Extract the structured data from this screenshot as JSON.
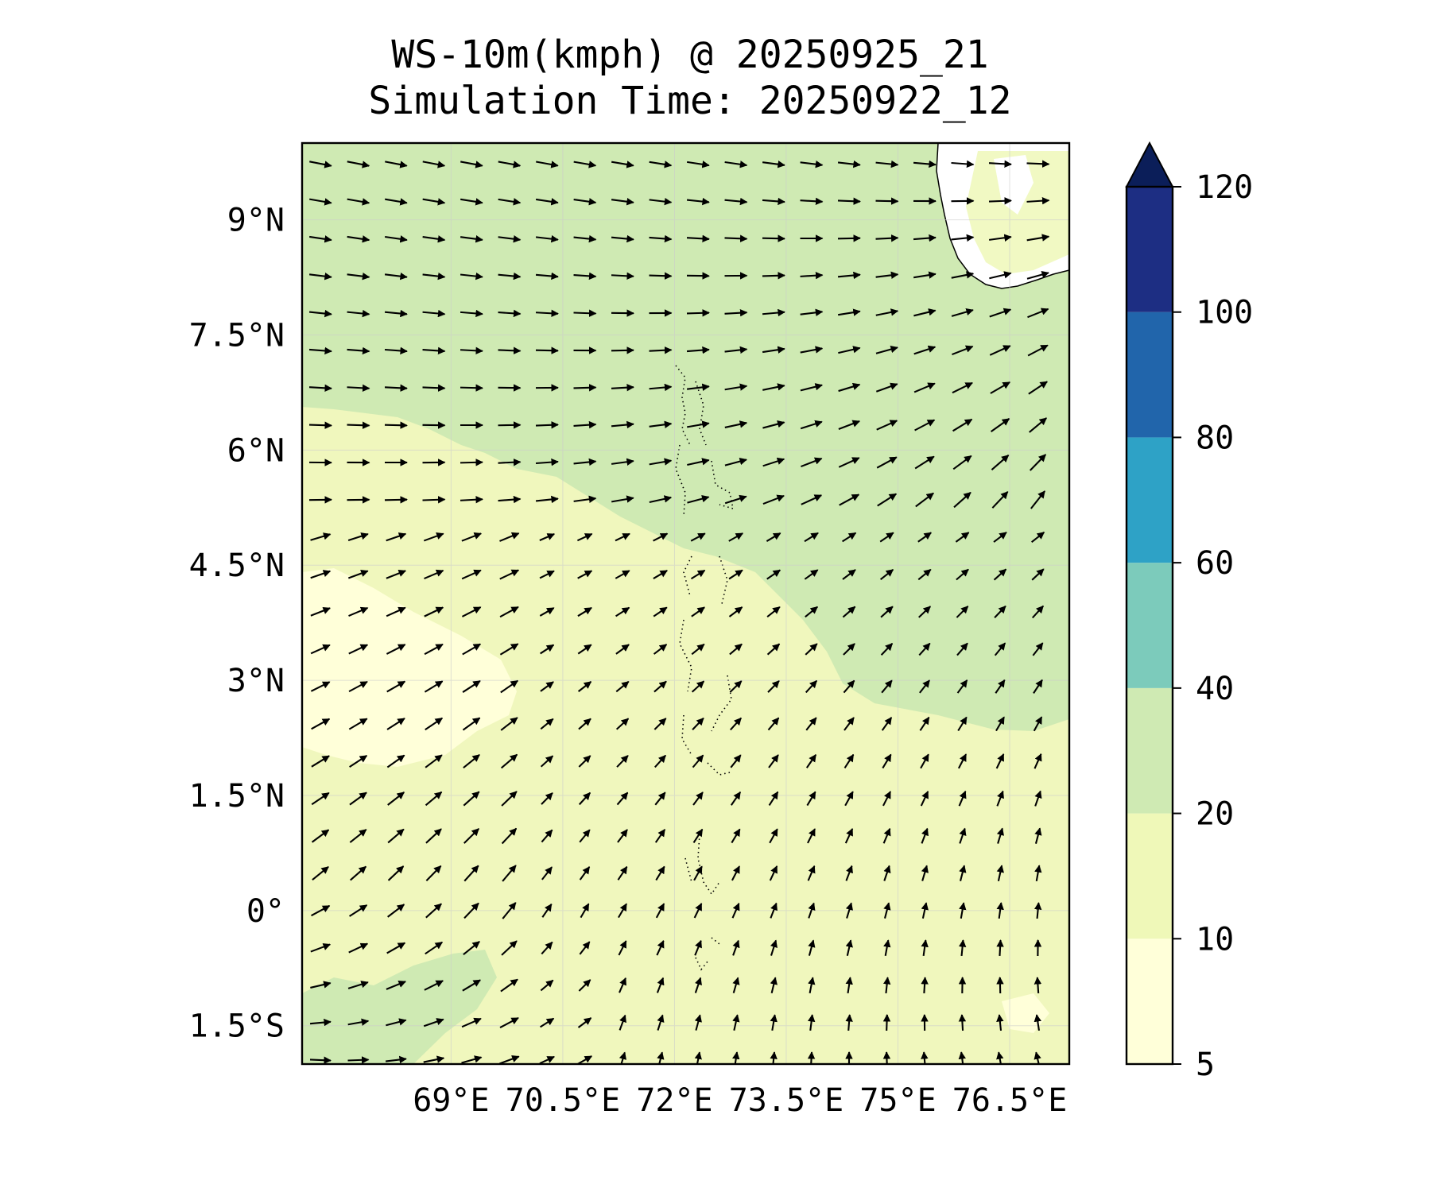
{
  "title": {
    "line1": "WS-10m(kmph) @ 20250925_21",
    "line2": "Simulation Time: 20250922_12"
  },
  "map": {
    "variable": "10 m wind speed",
    "lon_range": [
      67.0,
      77.3
    ],
    "lat_range": [
      -2.0,
      10.0
    ],
    "x_ticks": [
      {
        "value": 69,
        "label": "69°E"
      },
      {
        "value": 70.5,
        "label": "70.5°E"
      },
      {
        "value": 72,
        "label": "72°E"
      },
      {
        "value": 73.5,
        "label": "73.5°E"
      },
      {
        "value": 75,
        "label": "75°E"
      },
      {
        "value": 76.5,
        "label": "76.5°E"
      }
    ],
    "y_ticks": [
      {
        "value": 9,
        "label": "9°N"
      },
      {
        "value": 7.5,
        "label": "7.5°N"
      },
      {
        "value": 6,
        "label": "6°N"
      },
      {
        "value": 4.5,
        "label": "4.5°N"
      },
      {
        "value": 3,
        "label": "3°N"
      },
      {
        "value": 1.5,
        "label": "1.5°N"
      },
      {
        "value": 0,
        "label": "0°"
      },
      {
        "value": -1.5,
        "label": "1.5°S"
      }
    ]
  },
  "colorbar": {
    "extend": "max",
    "levels": [
      {
        "min": 5,
        "max": 10,
        "color": "#ffffd9"
      },
      {
        "min": 10,
        "max": 20,
        "color": "#eff8b8"
      },
      {
        "min": 20,
        "max": 40,
        "color": "#cfeab3"
      },
      {
        "min": 40,
        "max": 60,
        "color": "#7ccbbb"
      },
      {
        "min": 60,
        "max": 80,
        "color": "#2ea2c6"
      },
      {
        "min": 80,
        "max": 100,
        "color": "#2165ab"
      },
      {
        "min": 100,
        "max": 120,
        "color": "#1d2e83"
      }
    ],
    "over_color": "#0b1e59",
    "tick_labels": [
      "5",
      "10",
      "20",
      "40",
      "60",
      "80",
      "100",
      "120"
    ]
  }
}
